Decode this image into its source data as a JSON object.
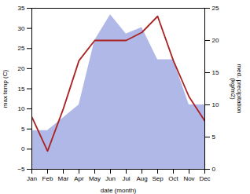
{
  "chart_data": {
    "type": "line",
    "xlabel": "date (month)",
    "ylabel": "max temp (C)",
    "y2label": "med. precipitation\n(kg/m2)",
    "categories": [
      "Jan",
      "Feb",
      "Mar",
      "Apr",
      "May",
      "Jun",
      "Jul",
      "Aug",
      "Sep",
      "Oct",
      "Nov",
      "Dec"
    ],
    "series": [
      {
        "type": "area",
        "axis": "y2",
        "color": "#b0b8e8",
        "values": [
          6,
          6,
          8,
          10,
          20,
          24,
          21,
          22,
          17,
          17,
          10,
          10
        ]
      },
      {
        "type": "line",
        "color": "#aa2222",
        "values": [
          8,
          -0.5,
          10,
          22,
          27,
          27,
          27,
          29,
          33,
          22,
          13,
          7
        ]
      }
    ],
    "ylim": [
      -5,
      35
    ],
    "yticks": [
      -5,
      0,
      5,
      10,
      15,
      20,
      25,
      30,
      35
    ],
    "y2lim": [
      0,
      25
    ],
    "y2ticks": [
      0,
      5,
      10,
      15,
      20,
      25
    ],
    "grid": false
  }
}
